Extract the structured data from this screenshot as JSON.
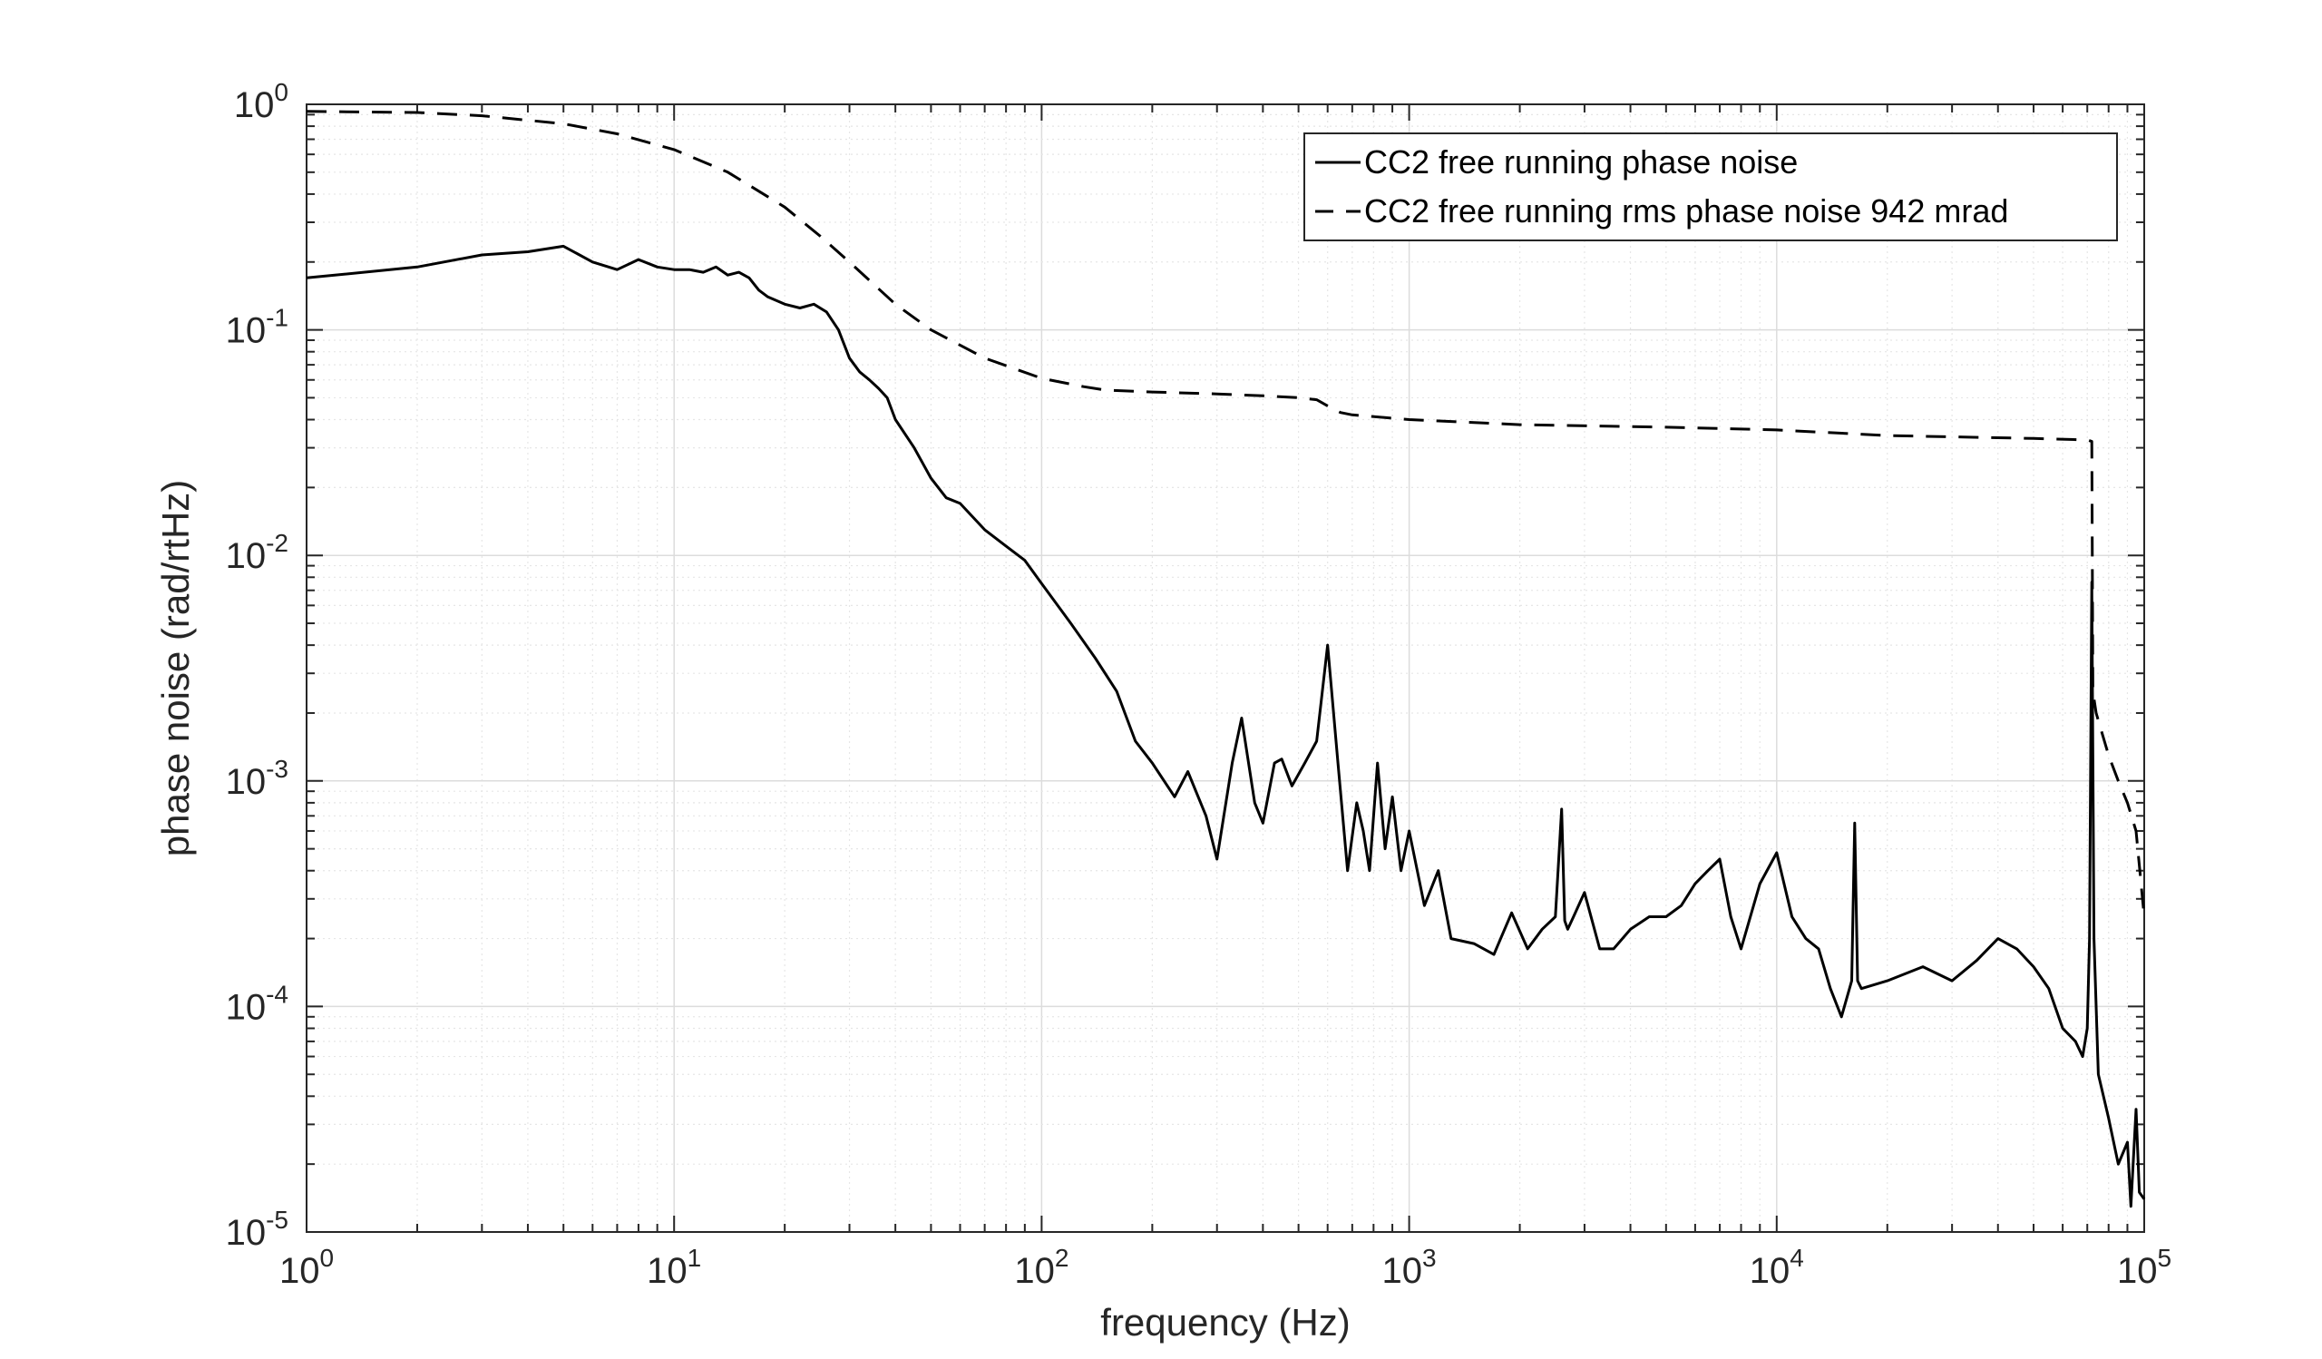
{
  "chart_data": {
    "type": "line",
    "title": "",
    "xlabel": "frequency (Hz)",
    "ylabel": "phase noise (rad/rtHz)",
    "xscale": "log",
    "yscale": "log",
    "xlim": [
      1,
      100000
    ],
    "ylim": [
      1e-05,
      1
    ],
    "grid": true,
    "legend_position": "top-right",
    "x_ticks": [
      {
        "base": "10",
        "exp": "0"
      },
      {
        "base": "10",
        "exp": "1"
      },
      {
        "base": "10",
        "exp": "2"
      },
      {
        "base": "10",
        "exp": "3"
      },
      {
        "base": "10",
        "exp": "4"
      },
      {
        "base": "10",
        "exp": "5"
      }
    ],
    "y_ticks": [
      {
        "base": "10",
        "exp": "-5"
      },
      {
        "base": "10",
        "exp": "-4"
      },
      {
        "base": "10",
        "exp": "-3"
      },
      {
        "base": "10",
        "exp": "-2"
      },
      {
        "base": "10",
        "exp": "-1"
      },
      {
        "base": "10",
        "exp": "0"
      }
    ],
    "series": [
      {
        "name": "CC2 free running phase noise",
        "style": "solid",
        "color": "#000000",
        "x": [
          1,
          2,
          3,
          4,
          5,
          6,
          7,
          8,
          9,
          10,
          11,
          12,
          13,
          14,
          15,
          16,
          17,
          18,
          20,
          22,
          24,
          26,
          28,
          30,
          32,
          34,
          36,
          38,
          40,
          45,
          50,
          55,
          60,
          70,
          80,
          90,
          100,
          120,
          140,
          160,
          180,
          200,
          230,
          250,
          280,
          300,
          330,
          350,
          380,
          400,
          430,
          450,
          480,
          520,
          560,
          600,
          640,
          680,
          720,
          750,
          780,
          820,
          860,
          900,
          950,
          1000,
          1100,
          1200,
          1300,
          1500,
          1700,
          1900,
          2100,
          2300,
          2500,
          2600,
          2650,
          2700,
          2800,
          3000,
          3300,
          3600,
          4000,
          4500,
          5000,
          5500,
          6000,
          6500,
          7000,
          7500,
          8000,
          9000,
          10000,
          11000,
          12000,
          13000,
          14000,
          15000,
          16000,
          16300,
          16600,
          17000,
          20000,
          25000,
          30000,
          35000,
          40000,
          45000,
          50000,
          55000,
          60000,
          65000,
          68000,
          70000,
          71000,
          72000,
          73000,
          75000,
          80000,
          85000,
          90000,
          92000,
          95000,
          97000,
          100000
        ],
        "y": [
          0.17,
          0.19,
          0.215,
          0.222,
          0.235,
          0.2,
          0.185,
          0.205,
          0.19,
          0.185,
          0.185,
          0.18,
          0.19,
          0.175,
          0.18,
          0.17,
          0.15,
          0.14,
          0.13,
          0.125,
          0.13,
          0.12,
          0.1,
          0.075,
          0.065,
          0.06,
          0.055,
          0.05,
          0.04,
          0.03,
          0.022,
          0.018,
          0.017,
          0.013,
          0.011,
          0.0095,
          0.0075,
          0.005,
          0.0035,
          0.0025,
          0.0015,
          0.0012,
          0.00085,
          0.0011,
          0.0007,
          0.00045,
          0.0012,
          0.0019,
          0.0008,
          0.00065,
          0.0012,
          0.00125,
          0.00095,
          0.0012,
          0.0015,
          0.004,
          0.0012,
          0.0004,
          0.0008,
          0.0006,
          0.0004,
          0.0012,
          0.0005,
          0.00085,
          0.0004,
          0.0006,
          0.00028,
          0.0004,
          0.0002,
          0.00019,
          0.00017,
          0.00026,
          0.00018,
          0.00022,
          0.00025,
          0.00075,
          0.00024,
          0.00022,
          0.00025,
          0.00032,
          0.00018,
          0.00018,
          0.00022,
          0.00025,
          0.00025,
          0.00028,
          0.00035,
          0.0004,
          0.00045,
          0.00025,
          0.00018,
          0.00035,
          0.00048,
          0.00025,
          0.0002,
          0.00018,
          0.00012,
          9e-05,
          0.00013,
          0.00065,
          0.00013,
          0.00012,
          0.00013,
          0.00015,
          0.00013,
          0.00016,
          0.0002,
          0.00018,
          0.00015,
          0.00012,
          8e-05,
          7e-05,
          6e-05,
          8e-05,
          0.0002,
          0.0076,
          0.0002,
          5e-05,
          3.2e-05,
          2e-05,
          2.5e-05,
          1.3e-05,
          3.5e-05,
          1.5e-05,
          1.4e-05
        ]
      },
      {
        "name": "CC2 free running rms phase noise 942 mrad",
        "style": "dashed",
        "color": "#000000",
        "x": [
          1,
          2,
          3,
          5,
          7,
          10,
          14,
          20,
          25,
          30,
          40,
          50,
          70,
          100,
          130,
          150,
          200,
          300,
          400,
          500,
          560,
          600,
          650,
          700,
          1000,
          2000,
          5000,
          10000,
          20000,
          50000,
          70000,
          72000,
          72500,
          74000,
          80000,
          85000,
          90000,
          95000,
          100000
        ],
        "y": [
          0.93,
          0.92,
          0.89,
          0.82,
          0.74,
          0.63,
          0.5,
          0.35,
          0.26,
          0.2,
          0.13,
          0.1,
          0.075,
          0.061,
          0.056,
          0.054,
          0.053,
          0.052,
          0.051,
          0.05,
          0.049,
          0.046,
          0.043,
          0.042,
          0.04,
          0.038,
          0.037,
          0.036,
          0.034,
          0.033,
          0.0325,
          0.032,
          0.0025,
          0.002,
          0.0013,
          0.001,
          0.0008,
          0.0006,
          0.00025
        ]
      }
    ]
  }
}
